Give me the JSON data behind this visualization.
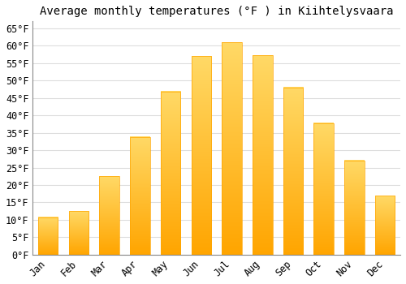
{
  "title": "Average monthly temperatures (°F ) in Kiihtelysvaara",
  "months": [
    "Jan",
    "Feb",
    "Mar",
    "Apr",
    "May",
    "Jun",
    "Jul",
    "Aug",
    "Sep",
    "Oct",
    "Nov",
    "Dec"
  ],
  "values": [
    10.8,
    12.5,
    22.5,
    33.8,
    46.9,
    57.0,
    61.0,
    57.2,
    48.0,
    37.8,
    27.1,
    17.0
  ],
  "bar_color_top": "#FFD966",
  "bar_color_bottom": "#FFA500",
  "background_color": "#FFFFFF",
  "grid_color": "#DDDDDD",
  "ylim": [
    0,
    67
  ],
  "yticks": [
    0,
    5,
    10,
    15,
    20,
    25,
    30,
    35,
    40,
    45,
    50,
    55,
    60,
    65
  ],
  "title_fontsize": 10,
  "tick_fontsize": 8.5,
  "font_family": "monospace"
}
